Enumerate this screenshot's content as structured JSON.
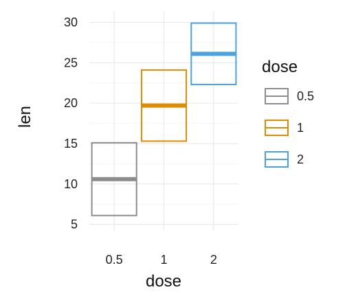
{
  "chart_data": {
    "type": "crossbar",
    "xlabel": "dose",
    "ylabel": "len",
    "categories": [
      "0.5",
      "1",
      "2"
    ],
    "series": [
      {
        "name": "0.5",
        "ymin": 6.1,
        "mid": 10.6,
        "ymax": 15.1,
        "color": "#8c8c8c"
      },
      {
        "name": "1",
        "ymin": 15.3,
        "mid": 19.7,
        "ymax": 24.1,
        "color": "#e08b00"
      },
      {
        "name": "2",
        "ymin": 22.3,
        "mid": 26.1,
        "ymax": 29.9,
        "color": "#4aa3df"
      }
    ],
    "ylim": [
      4.2,
      31.4
    ],
    "yticks": [
      "5",
      "10",
      "15",
      "20",
      "25",
      "30"
    ],
    "ytick_values": [
      5,
      10,
      15,
      20,
      25,
      30
    ],
    "grid": true,
    "legend": {
      "title": "dose",
      "position": "right",
      "entries": [
        "0.5",
        "1",
        "2"
      ]
    }
  }
}
